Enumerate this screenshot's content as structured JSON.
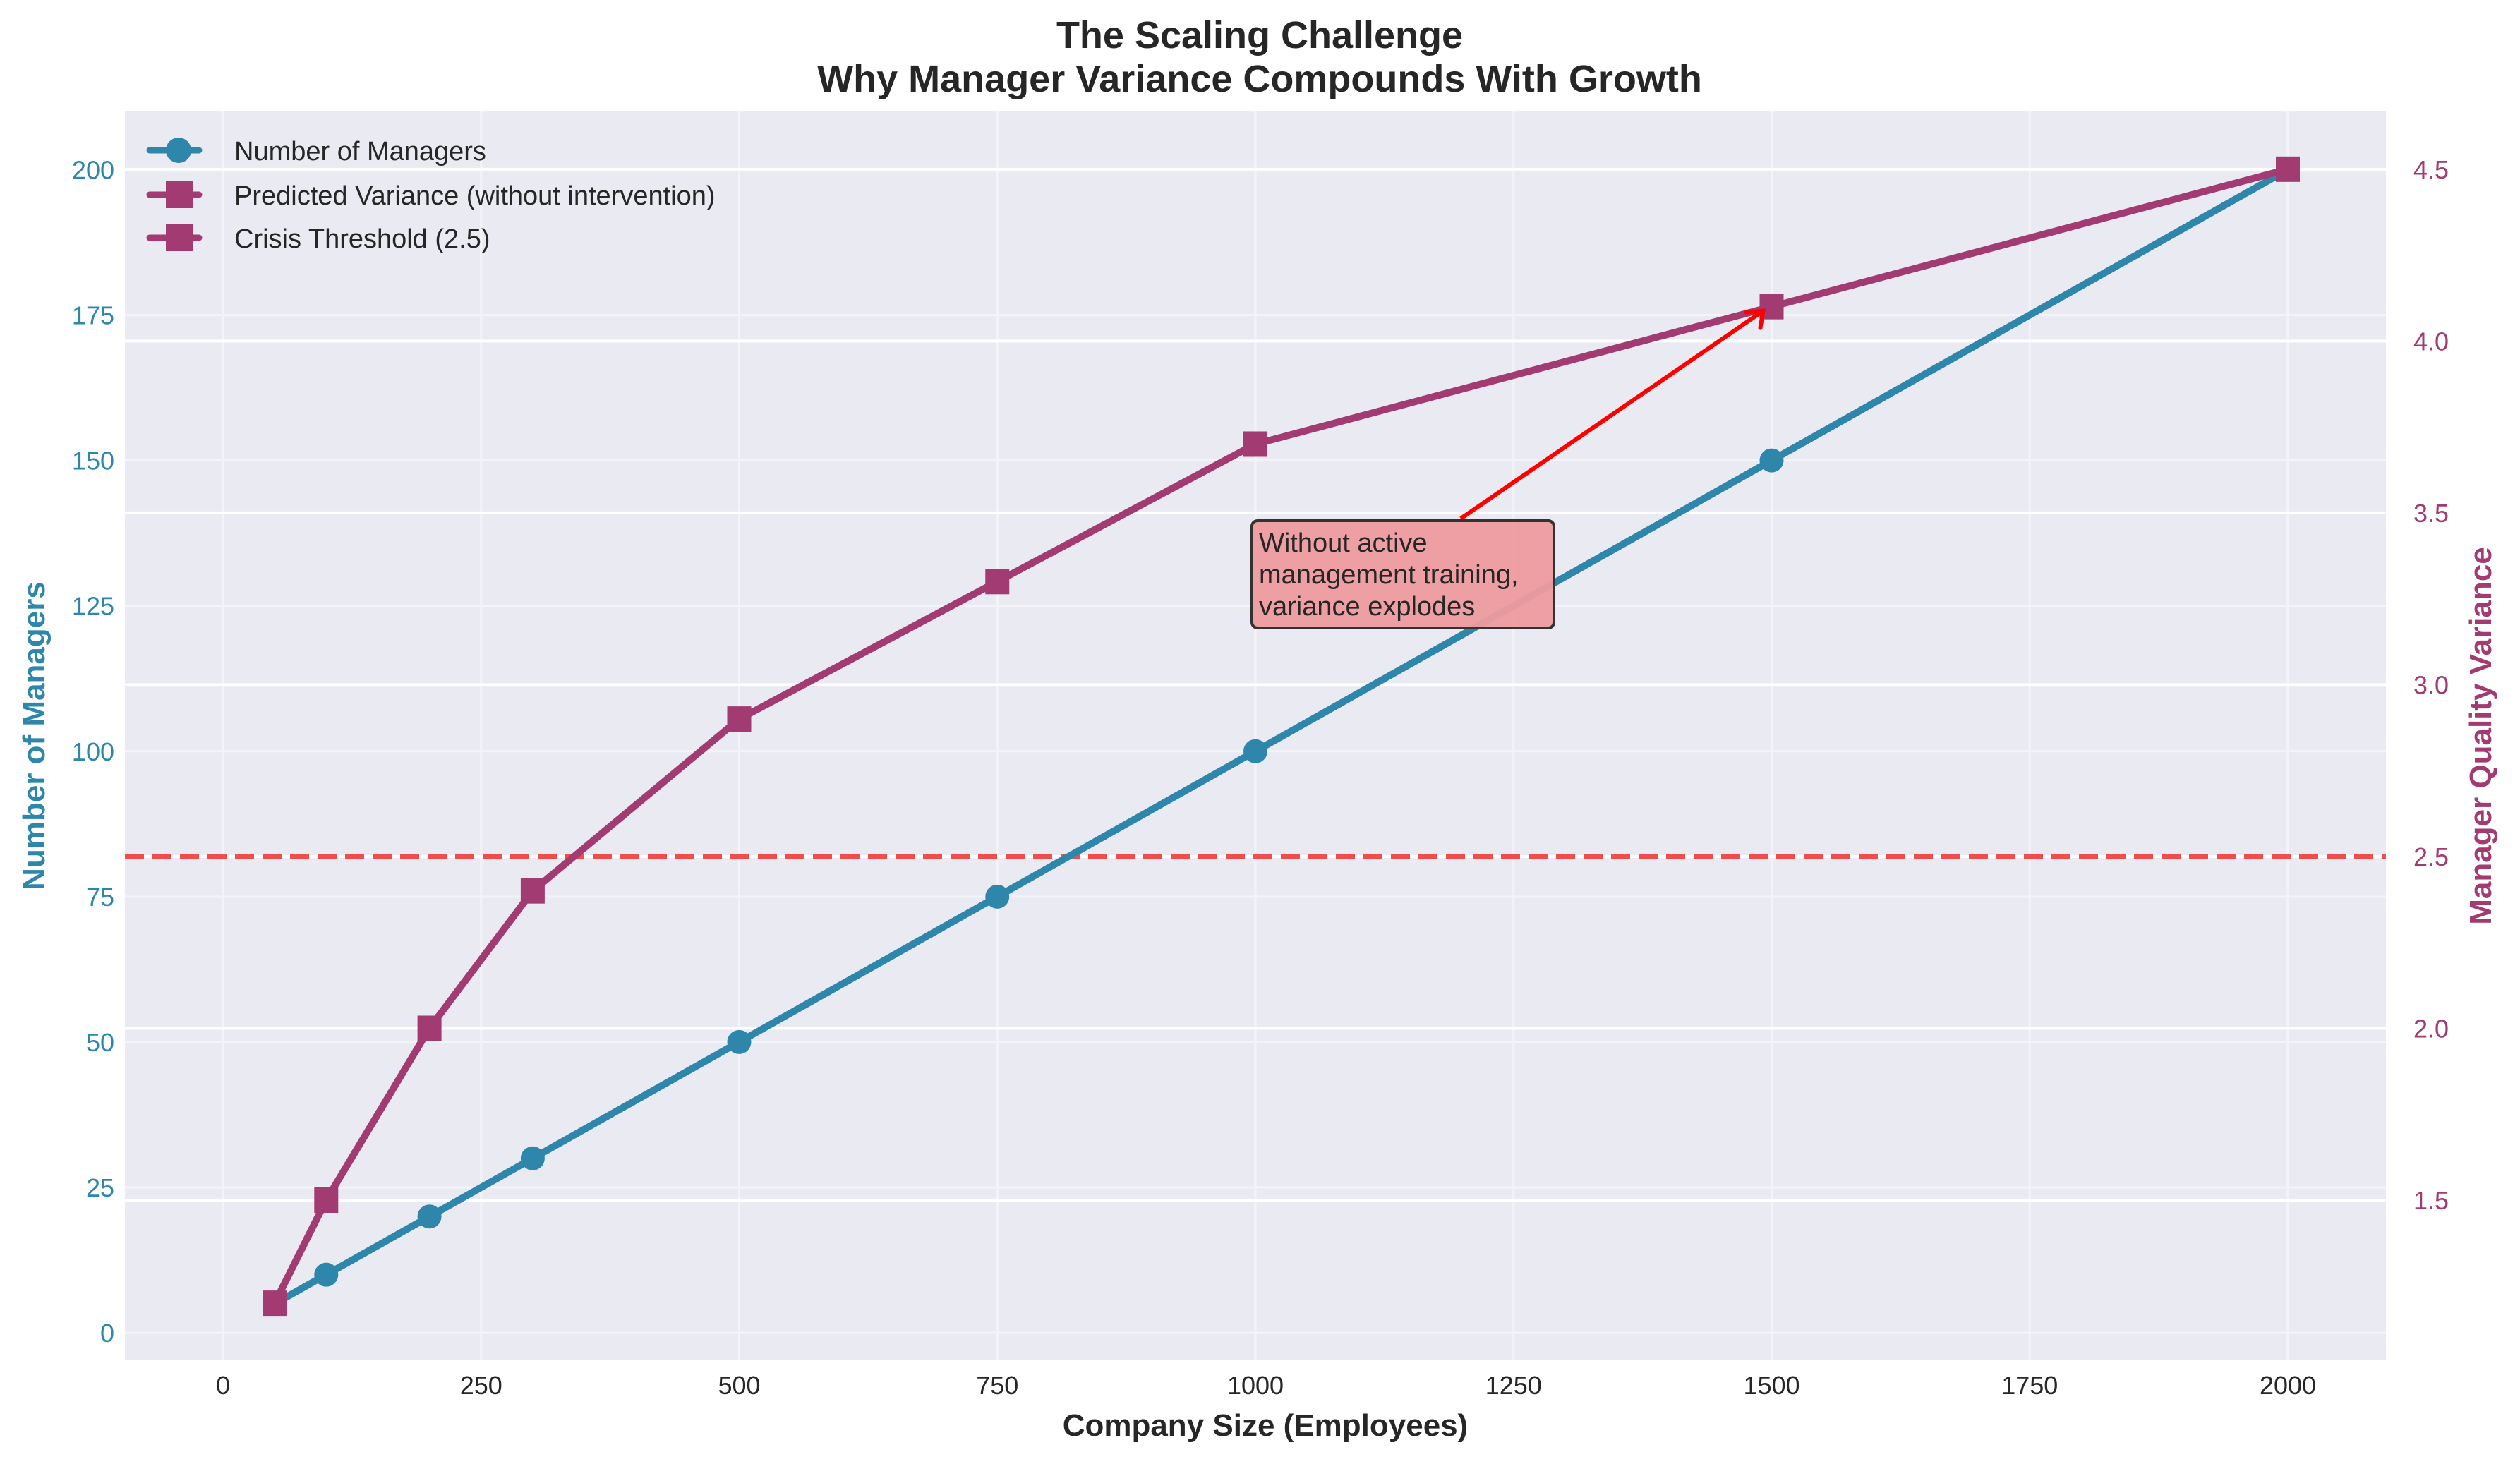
{
  "chart_data": {
    "type": "line",
    "title": "The Scaling Challenge",
    "subtitle": "Why Manager Variance Compounds With Growth",
    "xlabel": "Company Size (Employees)",
    "ylabel_left": "Number of Managers",
    "ylabel_right": "Manager Quality Variance",
    "x": [
      50,
      100,
      200,
      300,
      500,
      750,
      1000,
      1500,
      2000
    ],
    "xlim": [
      -95,
      2095
    ],
    "ylim_left": [
      -4.6,
      210
    ],
    "ylim_right": [
      1.036,
      4.668
    ],
    "x_ticks": [
      "0",
      "250",
      "500",
      "750",
      "1000",
      "1250",
      "1500",
      "1750",
      "2000"
    ],
    "x_tick_values": [
      0,
      250,
      500,
      750,
      1000,
      1250,
      1500,
      1750,
      2000
    ],
    "y_left_ticks": [
      "0",
      "25",
      "50",
      "75",
      "100",
      "125",
      "150",
      "175",
      "200"
    ],
    "y_left_tick_values": [
      0,
      25,
      50,
      75,
      100,
      125,
      150,
      175,
      200
    ],
    "y_right_ticks": [
      "1.5",
      "2.0",
      "2.5",
      "3.0",
      "3.5",
      "4.0",
      "4.5"
    ],
    "y_right_tick_values": [
      1.5,
      2.0,
      2.5,
      3.0,
      3.5,
      4.0,
      4.5
    ],
    "grid": true,
    "legend_position": "top-left",
    "series": [
      {
        "name": "Number of Managers",
        "axis": "left",
        "marker": "circle",
        "color": "#2E86AB",
        "values": [
          5,
          10,
          20,
          30,
          50,
          75,
          100,
          150,
          200
        ]
      },
      {
        "name": "Predicted Variance (without intervention)",
        "axis": "right",
        "marker": "square",
        "color": "#A23B72",
        "values": [
          1.2,
          1.5,
          2.0,
          2.4,
          2.9,
          3.3,
          3.7,
          4.1,
          4.5
        ]
      }
    ],
    "legend": [
      {
        "label": "Number of Managers",
        "marker": "circle",
        "color": "#2E86AB"
      },
      {
        "label": "Predicted Variance (without intervention)",
        "marker": "square",
        "color": "#A23B72"
      },
      {
        "label": "Crisis Threshold (2.5)",
        "marker": "square",
        "color": "#A23B72"
      }
    ],
    "threshold": {
      "label": "Crisis Threshold (2.5)",
      "axis": "right",
      "value": 2.5,
      "color": "#F24444",
      "style": "dashed"
    },
    "annotation": {
      "lines": [
        "Without active",
        "management training,",
        "variance explodes"
      ],
      "target_x": 1500,
      "target_y_right": 4.1,
      "text_x": 1000,
      "text_y_right": 3.5,
      "box_color": "#EE9B9E",
      "arrow_color": "#FF0000"
    },
    "colors": {
      "left_axis": "#2E86AB",
      "right_axis": "#A23B72",
      "background": "#EAEAF2",
      "grid": "#FFFFFF"
    }
  }
}
